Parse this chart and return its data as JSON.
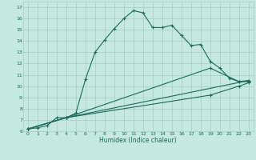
{
  "xlabel": "Humidex (Indice chaleur)",
  "bg_color": "#c5e8e0",
  "grid_color": "#a8ccc5",
  "line_color": "#1a6b5a",
  "xlim": [
    -0.5,
    23.5
  ],
  "ylim": [
    6,
    17.5
  ],
  "xticks": [
    0,
    1,
    2,
    3,
    4,
    5,
    6,
    7,
    8,
    9,
    10,
    11,
    12,
    13,
    14,
    15,
    16,
    17,
    18,
    19,
    20,
    21,
    22,
    23
  ],
  "yticks": [
    6,
    7,
    8,
    9,
    10,
    11,
    12,
    13,
    14,
    15,
    16,
    17
  ],
  "line1_x": [
    0,
    1,
    2,
    3,
    4,
    5,
    6,
    7,
    8,
    9,
    10,
    11,
    12,
    13,
    14,
    15,
    16,
    17,
    18,
    19,
    20,
    21,
    22,
    23
  ],
  "line1_y": [
    6.2,
    6.3,
    6.5,
    7.2,
    7.2,
    7.6,
    10.6,
    13.0,
    14.1,
    15.1,
    16.0,
    16.7,
    16.5,
    15.2,
    15.2,
    15.4,
    14.5,
    13.6,
    13.7,
    12.2,
    11.6,
    10.7,
    10.4,
    10.5
  ],
  "line2_x": [
    0,
    4,
    23
  ],
  "line2_y": [
    6.2,
    7.2,
    10.5
  ],
  "line3_x": [
    0,
    4,
    19,
    22,
    23
  ],
  "line3_y": [
    6.2,
    7.2,
    11.6,
    10.4,
    10.4
  ],
  "line4_x": [
    0,
    4,
    19,
    22,
    23
  ],
  "line4_y": [
    6.2,
    7.2,
    9.2,
    10.0,
    10.3
  ]
}
